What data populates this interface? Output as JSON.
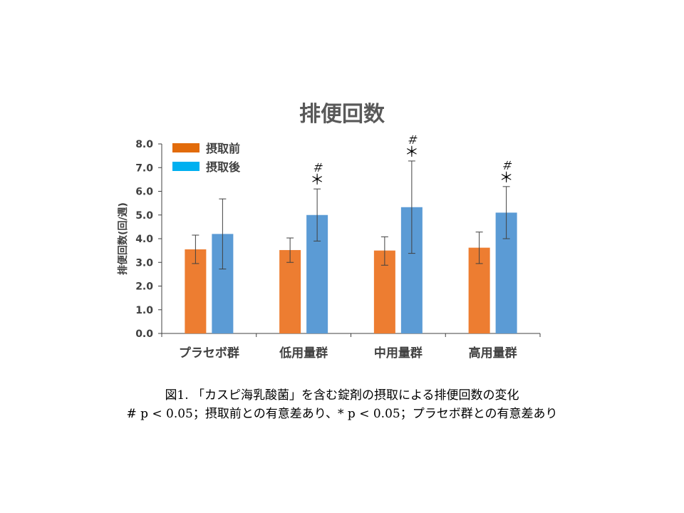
{
  "chart_data": {
    "type": "bar",
    "title": "排便回数",
    "ylabel": "排便回数(回/週)",
    "xlabel": "",
    "ylim": [
      0,
      8
    ],
    "yticks": [
      "0.0",
      "1.0",
      "2.0",
      "3.0",
      "4.0",
      "5.0",
      "6.0",
      "7.0",
      "8.0"
    ],
    "categories": [
      "プラセボ群",
      "低用量群",
      "中用量群",
      "高用量群"
    ],
    "series": [
      {
        "name": "摂取前",
        "color": "#ED7D31",
        "values": [
          3.55,
          3.52,
          3.5,
          3.62
        ],
        "error_low": [
          2.95,
          3.0,
          2.88,
          2.95
        ],
        "error_high": [
          4.15,
          4.03,
          4.08,
          4.28
        ]
      },
      {
        "name": "摂取後",
        "color": "#5B9BD5",
        "values": [
          4.2,
          5.0,
          5.33,
          5.1
        ],
        "error_low": [
          2.72,
          3.9,
          3.38,
          4.0
        ],
        "error_high": [
          5.68,
          6.1,
          7.28,
          6.2
        ]
      }
    ],
    "legend_colors": [
      "#E26B0A",
      "#00B0F0"
    ],
    "legend_position": "top-left",
    "grid": false,
    "annotations": [
      {
        "category_index": 1,
        "hash": "＃",
        "star": "＊"
      },
      {
        "category_index": 2,
        "hash": "＃",
        "star": "＊"
      },
      {
        "category_index": 3,
        "hash": "＃",
        "star": "＊"
      }
    ]
  },
  "caption": {
    "line1": "図1. 「カスピ海乳酸菌」を含む錠剤の摂取による排便回数の変化",
    "line2": "# p < 0.05；摂取前との有意差あり、* p < 0.05；プラセボ群との有意差あり"
  }
}
